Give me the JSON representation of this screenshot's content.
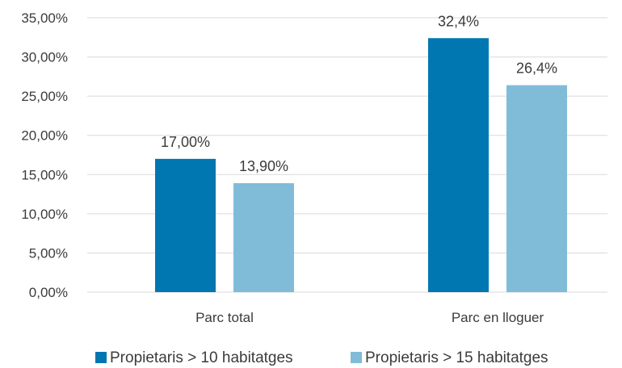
{
  "chart_data": {
    "type": "bar",
    "categories": [
      "Parc total",
      "Parc en lloguer"
    ],
    "series": [
      {
        "name": "Propietaris > 10 habitatges",
        "values": [
          17.0,
          32.4
        ],
        "labels": [
          "17,00%",
          "32,4%"
        ],
        "color": "#0077b0"
      },
      {
        "name": "Propietaris > 15 habitatges",
        "values": [
          13.9,
          26.4
        ],
        "labels": [
          "13,90%",
          "26,4%"
        ],
        "color": "#80bcd8"
      }
    ],
    "ylim": [
      0,
      35
    ],
    "yticks": [
      0,
      5,
      10,
      15,
      20,
      25,
      30,
      35
    ],
    "ytick_labels": [
      "0,00%",
      "5,00%",
      "10,00%",
      "15,00%",
      "20,00%",
      "25,00%",
      "30,00%",
      "35,00%"
    ],
    "grid": true,
    "legend_position": "bottom",
    "title": "",
    "xlabel": "",
    "ylabel": ""
  }
}
